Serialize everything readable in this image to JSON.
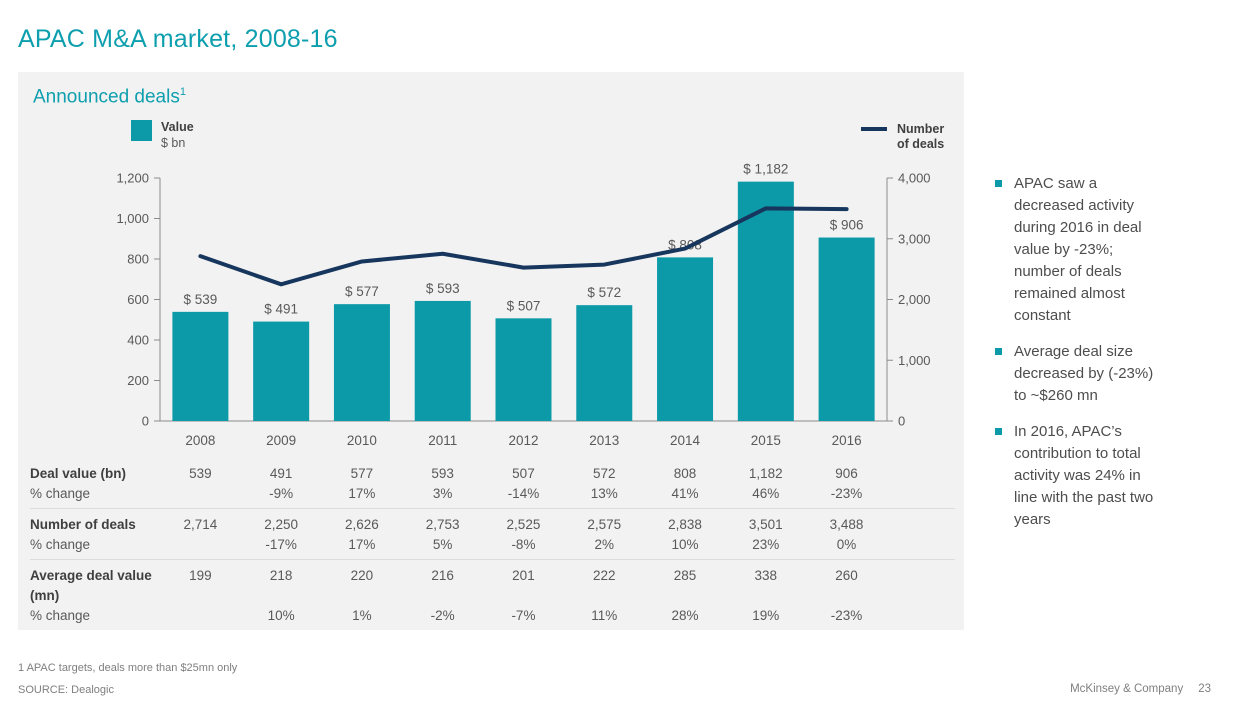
{
  "slide": {
    "title": "APAC M&A market, 2008-16",
    "footnote": "1 APAC targets, deals more than $25mn only",
    "source": "SOURCE: Dealogic",
    "brand": "McKinsey & Company",
    "page_number": "23"
  },
  "panel": {
    "heading": "Announced deals",
    "heading_sup": "1"
  },
  "legend": {
    "bar": {
      "label": "Value",
      "sublabel": "$ bn"
    },
    "line": {
      "label": "Number of deals"
    }
  },
  "colors": {
    "accent_teal": "#0e9fae",
    "bar_teal": "#0c99a8",
    "line_navy": "#17365d",
    "panel_bg": "#f2f2f2",
    "axis_gray": "#8c8c8c",
    "text_gray": "#595959"
  },
  "chart_data": {
    "type": "combo-bar-line",
    "title": "Announced deals",
    "categories": [
      "2008",
      "2009",
      "2010",
      "2011",
      "2012",
      "2013",
      "2014",
      "2015",
      "2016"
    ],
    "series": [
      {
        "name": "Value",
        "unit": "$ bn",
        "type": "bar",
        "axis": "left",
        "color": "#0c99a8",
        "values": [
          539,
          491,
          577,
          593,
          507,
          572,
          808,
          1182,
          906
        ],
        "labels": [
          "$ 539",
          "$ 491",
          "$ 577",
          "$ 593",
          "$ 507",
          "$ 572",
          "$ 808",
          "$ 1,182",
          "$ 906"
        ]
      },
      {
        "name": "Number of deals",
        "type": "line",
        "axis": "right",
        "color": "#17365d",
        "values": [
          2714,
          2250,
          2626,
          2753,
          2525,
          2575,
          2838,
          3501,
          3488
        ]
      }
    ],
    "left_axis": {
      "range": [
        0,
        1200
      ],
      "ticks": [
        "0",
        "200",
        "400",
        "600",
        "800",
        "1,000",
        "1,200"
      ]
    },
    "right_axis": {
      "range": [
        0,
        4000
      ],
      "ticks": [
        "0",
        "1,000",
        "2,000",
        "3,000",
        "4,000"
      ]
    },
    "grid": false,
    "legend_position": "top"
  },
  "table": {
    "groups": [
      {
        "label": "Deal value (bn)",
        "sublabel": "% change",
        "values": [
          "539",
          "491",
          "577",
          "593",
          "507",
          "572",
          "808",
          "1,182",
          "906"
        ],
        "changes": [
          "",
          "-9%",
          "17%",
          "3%",
          "-14%",
          "13%",
          "41%",
          "46%",
          "-23%"
        ]
      },
      {
        "label": "Number of deals",
        "sublabel": "% change",
        "values": [
          "2,714",
          "2,250",
          "2,626",
          "2,753",
          "2,525",
          "2,575",
          "2,838",
          "3,501",
          "3,488"
        ],
        "changes": [
          "",
          "-17%",
          "17%",
          "5%",
          "-8%",
          "2%",
          "10%",
          "23%",
          "0%"
        ]
      },
      {
        "label": "Average deal value (mn)",
        "sublabel": "% change",
        "values": [
          "199",
          "218",
          "220",
          "216",
          "201",
          "222",
          "285",
          "338",
          "260"
        ],
        "changes": [
          "",
          "10%",
          "1%",
          "-2%",
          "-7%",
          "11%",
          "28%",
          "19%",
          "-23%"
        ]
      }
    ]
  },
  "insights": [
    "APAC saw a decreased activity during 2016 in deal value by -23%; number of deals remained almost constant",
    "Average deal size decreased by (-23%) to ~$260 mn",
    "In 2016, APAC’s contribution to total activity was 24% in line with the past two years"
  ]
}
